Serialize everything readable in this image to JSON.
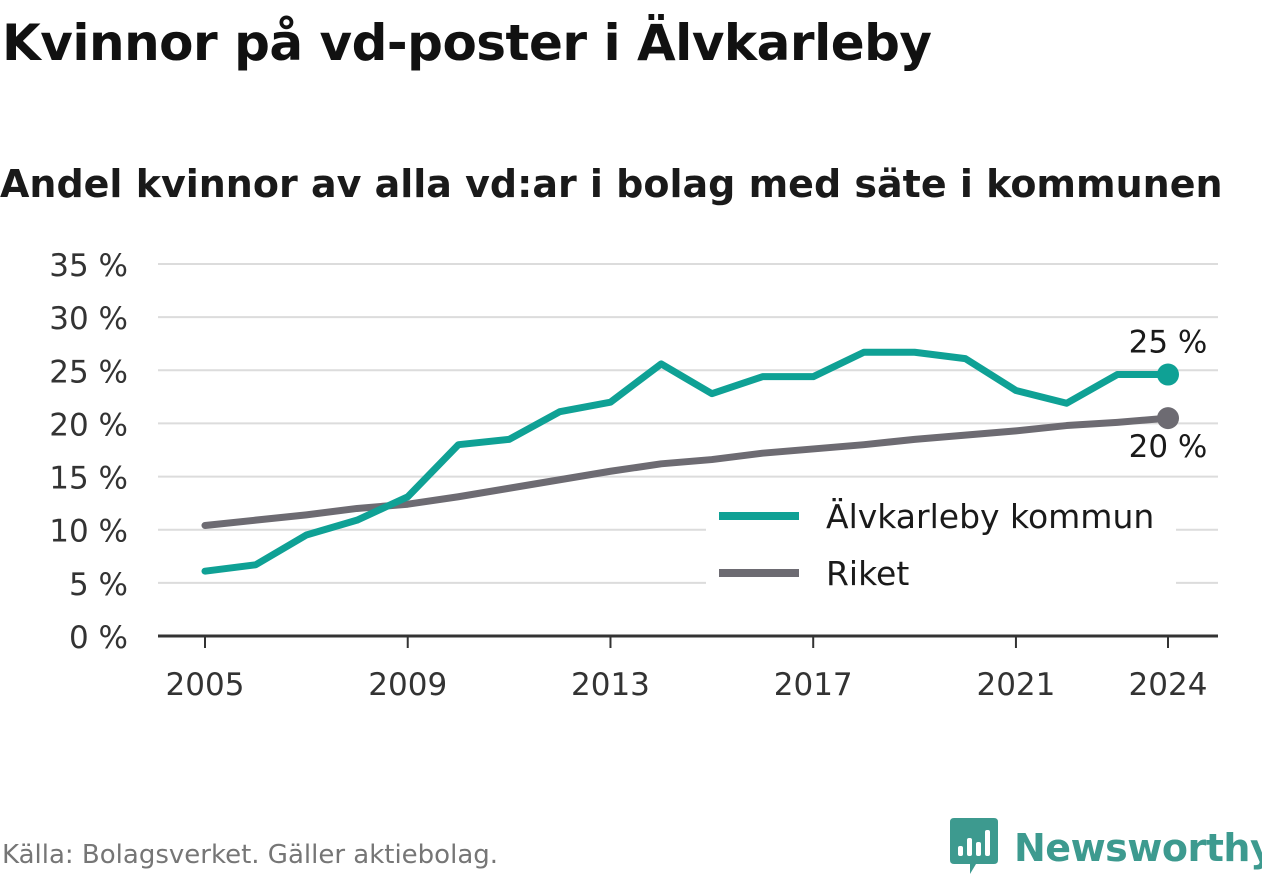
{
  "header": {
    "title": "Kvinnor på vd-poster i Älvkarleby",
    "subtitle": "Andel kvinnor av alla vd:ar i bolag med säte i kommunen"
  },
  "footer": {
    "source": "Källa: Bolagsverket. Gäller aktiebolag.",
    "brand": "Newsworthy"
  },
  "colors": {
    "municipality": "#0fa195",
    "country": "#6d6b72",
    "grid": "#dcdcdc",
    "axis": "#333333",
    "brand": "#3d9a8f"
  },
  "chart_data": {
    "type": "line",
    "ylim": [
      0,
      35
    ],
    "yticks": [
      0,
      5,
      10,
      15,
      20,
      25,
      30,
      35
    ],
    "ytick_labels": [
      "0 %",
      "5 %",
      "10 %",
      "15 %",
      "20 %",
      "25 %",
      "30 %",
      "35 %"
    ],
    "xlim": [
      2005,
      2024
    ],
    "xticks": [
      2005,
      2009,
      2013,
      2017,
      2021,
      2024
    ],
    "xtick_labels": [
      "2005",
      "2009",
      "2013",
      "2017",
      "2021",
      "2024"
    ],
    "x": [
      2005,
      2006,
      2007,
      2008,
      2009,
      2010,
      2011,
      2012,
      2013,
      2014,
      2015,
      2016,
      2017,
      2018,
      2019,
      2020,
      2021,
      2022,
      2023,
      2024
    ],
    "grid": true,
    "legend_position": "lower-right",
    "series": [
      {
        "name": "Älvkarleby kommun",
        "color": "#0fa195",
        "values": [
          6.1,
          6.7,
          9.5,
          10.9,
          13.1,
          18.0,
          18.5,
          21.1,
          22.0,
          25.6,
          22.8,
          24.4,
          24.4,
          26.7,
          26.7,
          26.1,
          23.1,
          21.9,
          24.6,
          24.6
        ],
        "end_label": "25 %"
      },
      {
        "name": "Riket",
        "color": "#6d6b72",
        "values": [
          10.4,
          10.9,
          11.4,
          12.0,
          12.4,
          13.1,
          13.9,
          14.7,
          15.5,
          16.2,
          16.6,
          17.2,
          17.6,
          18.0,
          18.5,
          18.9,
          19.3,
          19.8,
          20.1,
          20.5
        ],
        "end_label": "20 %"
      }
    ]
  }
}
